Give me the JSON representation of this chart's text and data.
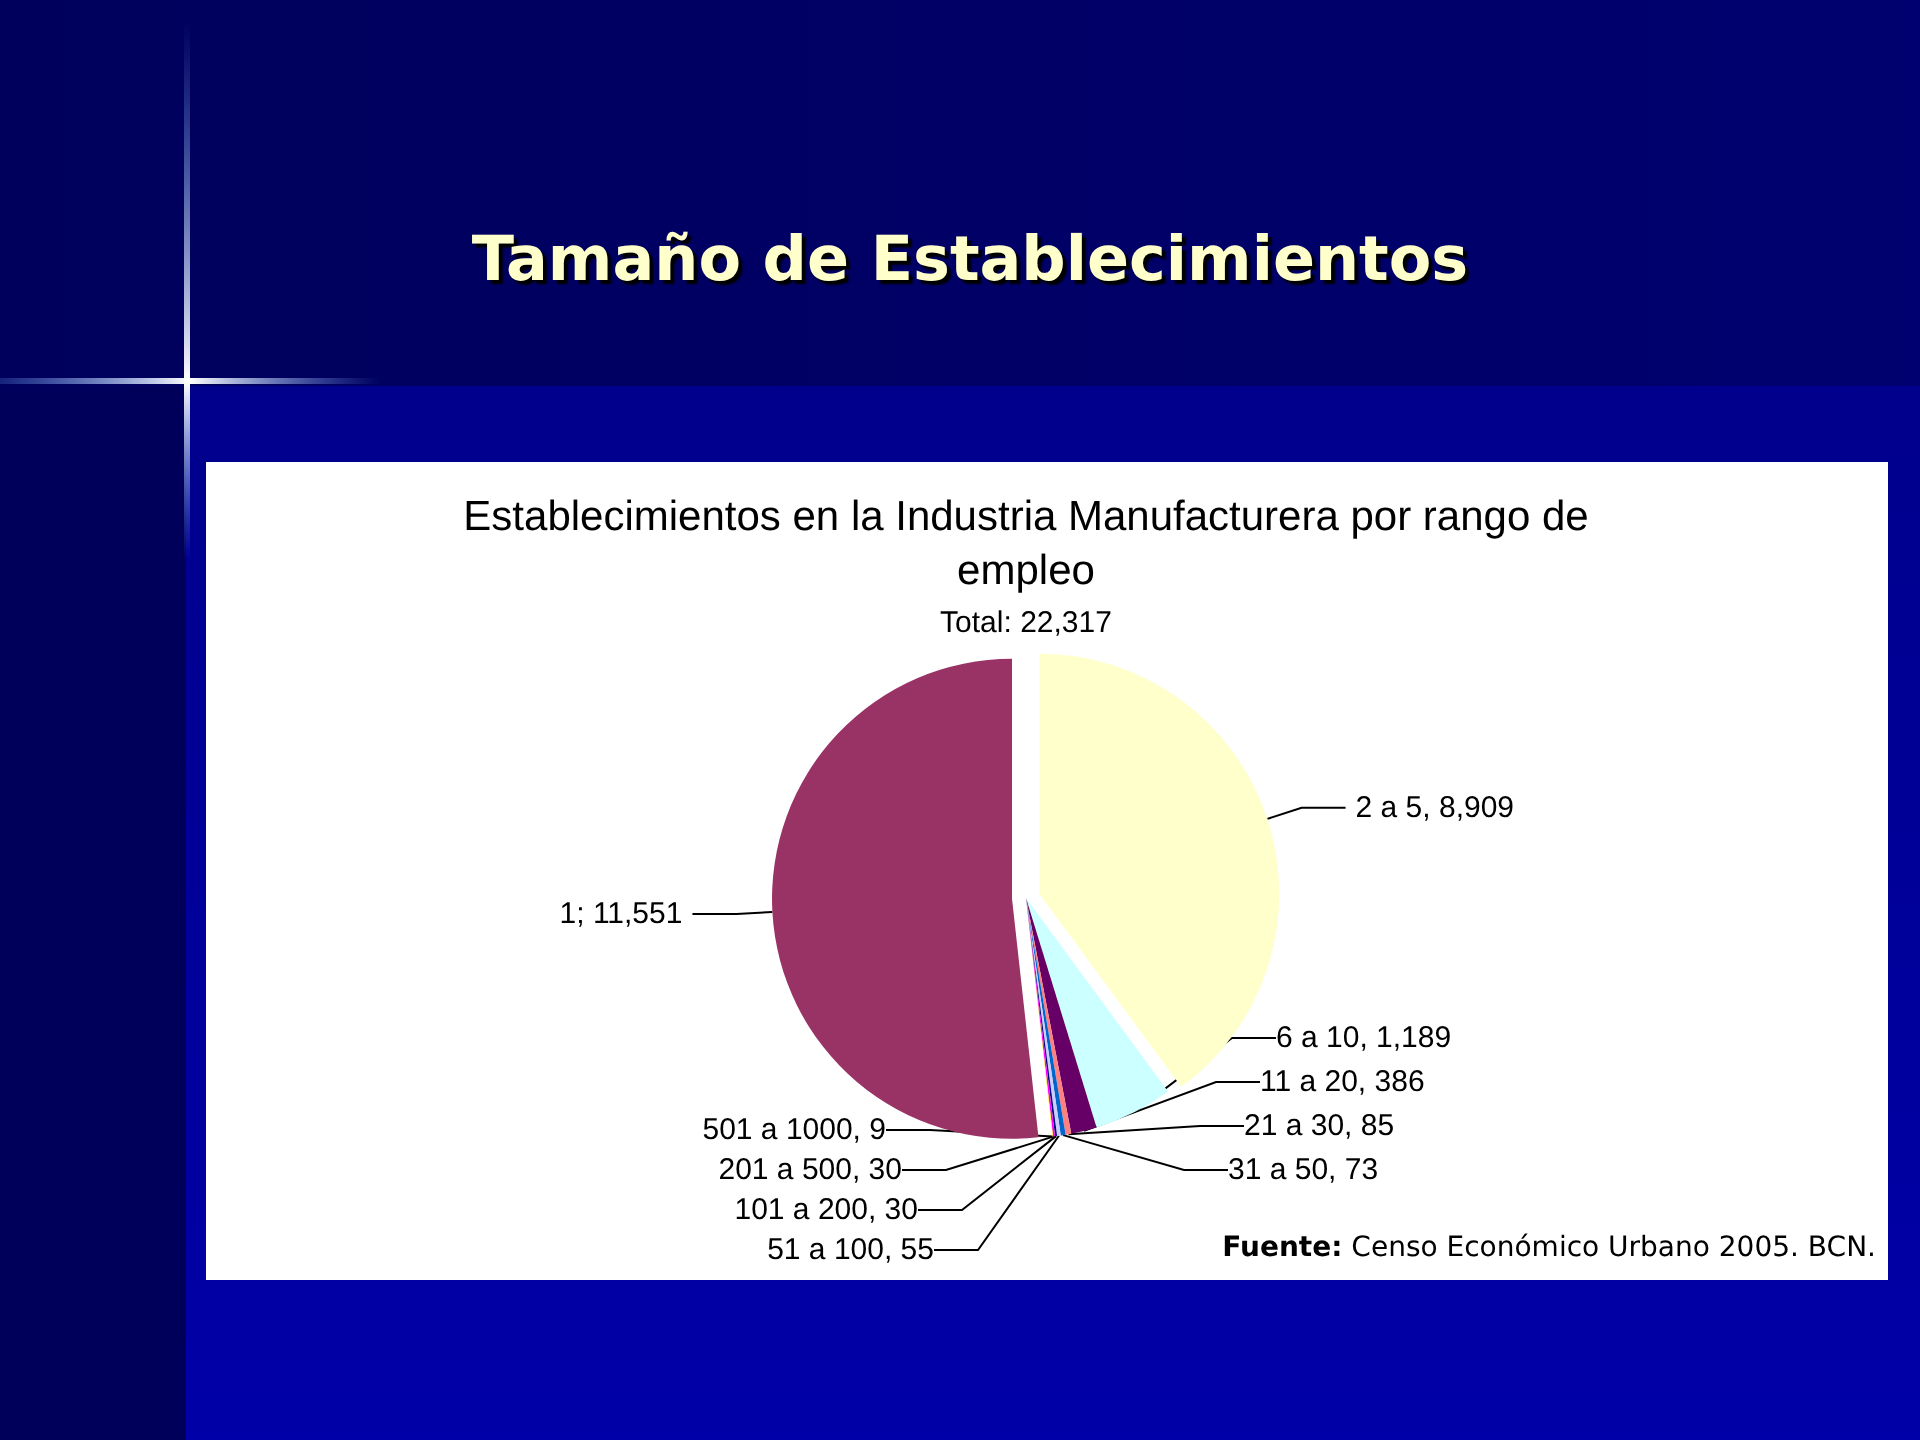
{
  "chart_data": {
    "type": "pie",
    "title": "Tamaño de Establecimientos",
    "subtitle": "Establecimientos en la Industria Manufacturera por rango de empleo",
    "annotations": [
      "Total: 22,317",
      "Fuente: Censo Económico Urbano 2005. BCN."
    ],
    "categories": [
      "2 a 5",
      "6 a 10",
      "11 a 20",
      "21 a 30",
      "31 a 50",
      "51 a 100",
      "101 a 200",
      "201 a 500",
      "501 a 1000",
      "1"
    ],
    "values": [
      8909,
      1189,
      386,
      85,
      73,
      55,
      30,
      30,
      9,
      11551
    ],
    "value_labels": [
      "8,909",
      "1,189",
      "386",
      "85",
      "73",
      "55",
      "30",
      "30",
      "9",
      "11,551"
    ],
    "colors": [
      "#ffffcc",
      "#ccffff",
      "#660066",
      "#ff8080",
      "#0066cc",
      "#ccccff",
      "#000080",
      "#ff00ff",
      "#ffff00",
      "#993366"
    ]
  }
}
